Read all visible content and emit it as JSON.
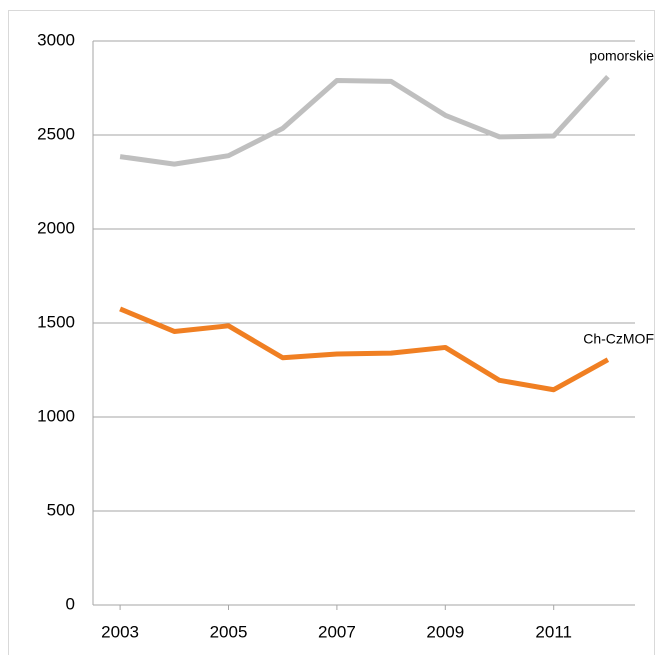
{
  "chart_data": {
    "type": "line",
    "x": [
      2003,
      2004,
      2005,
      2006,
      2007,
      2008,
      2009,
      2010,
      2011,
      2012
    ],
    "series": [
      {
        "name": "pomorskie",
        "color": "#bfbfbf",
        "values": [
          2385,
          2345,
          2390,
          2535,
          2790,
          2785,
          2605,
          2490,
          2495,
          2810
        ]
      },
      {
        "name": "Ch-CzMOF",
        "color": "#f07f22",
        "values": [
          1575,
          1455,
          1485,
          1315,
          1335,
          1340,
          1370,
          1195,
          1145,
          1305
        ]
      }
    ],
    "xlim": [
      2002.5,
      2012.5
    ],
    "xticks": [
      2003,
      2005,
      2007,
      2009,
      2011
    ],
    "ylim": [
      0,
      3000
    ],
    "yticks": [
      0,
      500,
      1000,
      1500,
      2000,
      2500,
      3000
    ],
    "grid": true
  }
}
